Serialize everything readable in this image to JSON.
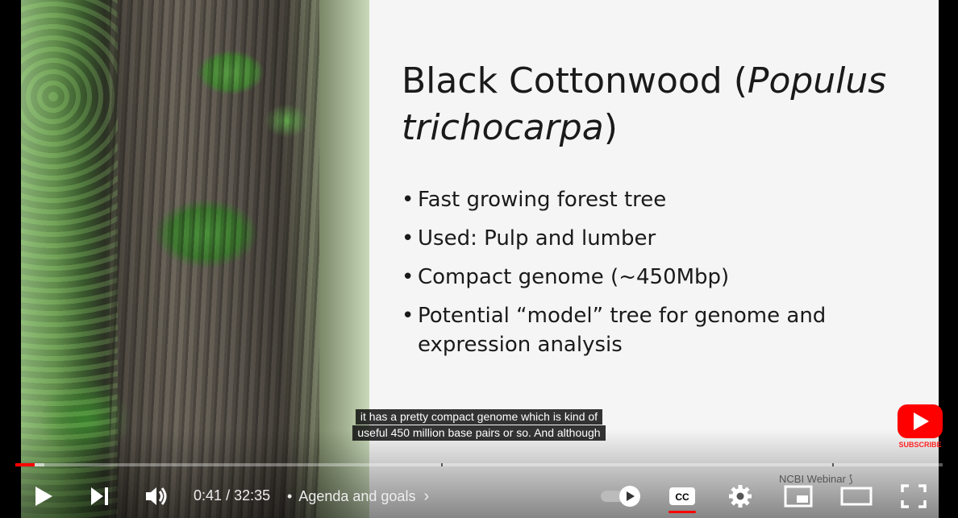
{
  "slide": {
    "title_plain": "Black Cottonwood (",
    "title_italic1": "Populus",
    "title_italic2": "trichocarpa",
    "title_close": ")",
    "bullets": [
      "Fast growing forest tree",
      "Used: Pulp and lumber",
      "Compact genome (~450Mbp)",
      "Potential “model” tree for genome and expression analysis"
    ],
    "bullet_symbol": "•"
  },
  "captions": {
    "line1": "it has a pretty compact genome which is kind of",
    "line2": "useful 450 million base pairs or so. And although"
  },
  "subscribe": {
    "label": "SUBSCRIBE",
    "color": "#ff0000"
  },
  "watermark": "NCBI Webinar",
  "player": {
    "current_time": "0:41",
    "separator": "/",
    "duration": "32:35",
    "chapter_dot": "•",
    "chapter_title": "Agenda and goals",
    "played_fraction": 0.021,
    "buffered_fraction": 0.031,
    "accent": "#ff0000",
    "icons": [
      "play-icon",
      "next-icon",
      "volume-icon",
      "autoplay-toggle",
      "subtitles-icon",
      "settings-icon",
      "miniplayer-icon",
      "theater-mode-icon",
      "fullscreen-icon"
    ]
  }
}
